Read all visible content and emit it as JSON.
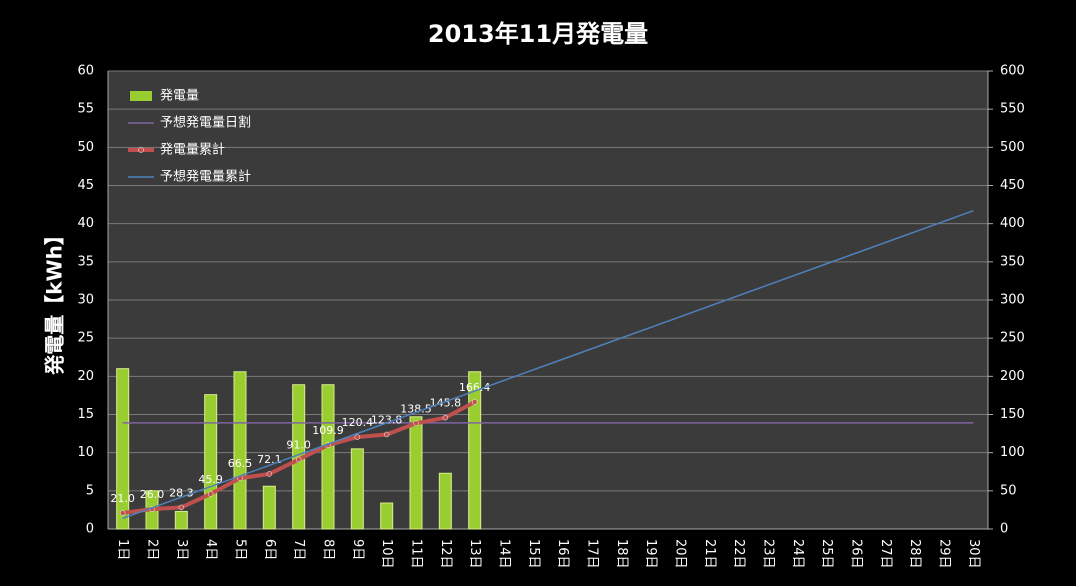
{
  "chart_data": {
    "type": "bar-line",
    "title": "2013年11月発電量",
    "y_label": "発電量【kWh】",
    "categories": [
      "1日",
      "2日",
      "3日",
      "4日",
      "5日",
      "6日",
      "7日",
      "8日",
      "9日",
      "10日",
      "11日",
      "12日",
      "13日",
      "14日",
      "15日",
      "16日",
      "17日",
      "18日",
      "19日",
      "20日",
      "21日",
      "22日",
      "23日",
      "24日",
      "25日",
      "26日",
      "27日",
      "28日",
      "29日",
      "30日"
    ],
    "ylim": [
      0,
      60
    ],
    "yticks": [
      0,
      5,
      10,
      15,
      20,
      25,
      30,
      35,
      40,
      45,
      50,
      55,
      60
    ],
    "y2lim": [
      0,
      600
    ],
    "y2ticks": [
      0,
      50,
      100,
      150,
      200,
      250,
      300,
      350,
      400,
      450,
      500,
      550,
      600
    ],
    "grid": true,
    "legend": "top-left",
    "series": [
      {
        "name": "発電量",
        "type": "bar",
        "color": "#9acd32",
        "values": [
          21.0,
          5.0,
          2.3,
          17.6,
          20.6,
          5.6,
          18.9,
          18.9,
          10.5,
          3.4,
          14.7,
          7.3,
          20.6,
          null,
          null,
          null,
          null,
          null,
          null,
          null,
          null,
          null,
          null,
          null,
          null,
          null,
          null,
          null,
          null,
          null
        ]
      },
      {
        "name": "予想発電量日割",
        "type": "line",
        "color": "#8064a2",
        "values": [
          13.9,
          13.9,
          13.9,
          13.9,
          13.9,
          13.9,
          13.9,
          13.9,
          13.9,
          13.9,
          13.9,
          13.9,
          13.9,
          13.9,
          13.9,
          13.9,
          13.9,
          13.9,
          13.9,
          13.9,
          13.9,
          13.9,
          13.9,
          13.9,
          13.9,
          13.9,
          13.9,
          13.9,
          13.9,
          13.9
        ]
      },
      {
        "name": "発電量累計",
        "type": "line",
        "axis": "y2",
        "color": "#c0504d",
        "values": [
          21.0,
          26.0,
          28.3,
          45.9,
          66.5,
          72.1,
          91.0,
          109.9,
          120.4,
          123.8,
          138.5,
          145.8,
          166.4,
          null,
          null,
          null,
          null,
          null,
          null,
          null,
          null,
          null,
          null,
          null,
          null,
          null,
          null,
          null,
          null,
          null
        ],
        "value_labels": [
          "21.0",
          "26.0",
          "28.3",
          "45.9",
          "66.5",
          "72.1",
          "91.0",
          "109.9",
          "120.4",
          "123.8",
          "138.5",
          "145.8",
          "166.4",
          null,
          null,
          null,
          null,
          null,
          null,
          null,
          null,
          null,
          null,
          null,
          null,
          null,
          null,
          null,
          null,
          null
        ]
      },
      {
        "name": "予想発電量累計",
        "type": "line",
        "axis": "y2",
        "color": "#4f81bd",
        "values": [
          13.9,
          27.8,
          41.7,
          55.6,
          69.5,
          83.4,
          97.3,
          111.2,
          125.1,
          139.0,
          152.9,
          166.8,
          180.7,
          194.6,
          208.5,
          222.4,
          236.3,
          250.2,
          264.1,
          278.0,
          291.9,
          305.8,
          319.7,
          333.6,
          347.5,
          361.4,
          375.3,
          389.2,
          403.1,
          417.0
        ]
      }
    ]
  }
}
